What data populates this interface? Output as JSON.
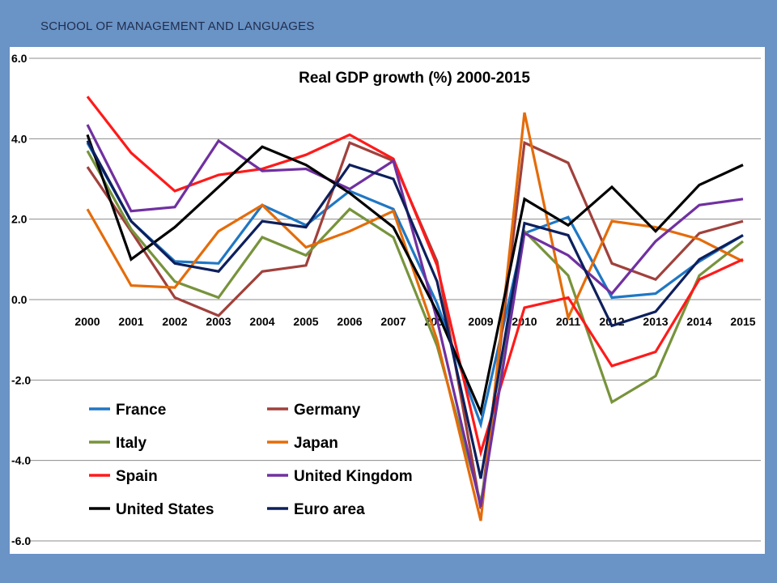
{
  "header": {
    "text": "SCHOOL OF MANAGEMENT AND LANGUAGES"
  },
  "chart_data": {
    "type": "line",
    "title": "Real GDP growth (%) 2000-2015",
    "xlabel": "",
    "ylabel": "",
    "ylim": [
      -6,
      6
    ],
    "yticks": [
      6,
      4,
      2,
      0,
      -2,
      -4,
      -6
    ],
    "ytick_labels": [
      "6.0",
      "4.0",
      "2.0",
      "0.0",
      "-2.0",
      "-4.0",
      "-6.0"
    ],
    "x": [
      "2000",
      "2001",
      "2002",
      "2003",
      "2004",
      "2005",
      "2006",
      "2007",
      "2008",
      "2009",
      "2010",
      "2011",
      "2012",
      "2013",
      "2014",
      "2015"
    ],
    "grid": true,
    "legend_position": "bottom-left",
    "series": [
      {
        "name": "France",
        "color": "#1f77c4",
        "values": [
          3.9,
          1.95,
          0.95,
          0.9,
          2.35,
          1.85,
          2.7,
          2.25,
          -0.1,
          -3.1,
          1.65,
          2.05,
          0.05,
          0.15,
          0.95,
          1.6
        ]
      },
      {
        "name": "Germany",
        "color": "#a0413c",
        "values": [
          3.3,
          1.7,
          0.05,
          -0.4,
          0.7,
          0.85,
          3.9,
          3.45,
          0.95,
          -5.2,
          3.9,
          3.4,
          0.9,
          0.5,
          1.65,
          1.95
        ]
      },
      {
        "name": "Italy",
        "color": "#77933c",
        "values": [
          3.7,
          1.75,
          0.45,
          0.05,
          1.55,
          1.1,
          2.25,
          1.55,
          -1.15,
          -5.05,
          1.7,
          0.6,
          -2.55,
          -1.9,
          0.6,
          1.45
        ]
      },
      {
        "name": "Japan",
        "color": "#e46c0a",
        "values": [
          2.25,
          0.35,
          0.3,
          1.7,
          2.35,
          1.3,
          1.7,
          2.2,
          -1.0,
          -5.5,
          4.65,
          -0.45,
          1.95,
          1.8,
          1.5,
          0.95
        ]
      },
      {
        "name": "Spain",
        "color": "#ff1a1a",
        "values": [
          5.05,
          3.65,
          2.7,
          3.1,
          3.25,
          3.6,
          4.1,
          3.5,
          0.85,
          -3.8,
          -0.2,
          0.05,
          -1.65,
          -1.3,
          0.5,
          1.0
        ]
      },
      {
        "name": "United Kingdom",
        "color": "#7030a0",
        "values": [
          4.35,
          2.2,
          2.3,
          3.95,
          3.2,
          3.25,
          2.75,
          3.45,
          -0.5,
          -5.15,
          1.65,
          1.1,
          0.15,
          1.45,
          2.35,
          2.5
        ]
      },
      {
        "name": "United States",
        "color": "#000000",
        "values": [
          4.1,
          1.0,
          1.8,
          2.8,
          3.8,
          3.35,
          2.65,
          1.8,
          -0.3,
          -2.8,
          2.5,
          1.85,
          2.8,
          1.7,
          2.85,
          3.35
        ]
      },
      {
        "name": "Euro area",
        "color": "#0d1f5c",
        "values": [
          3.95,
          1.95,
          0.9,
          0.7,
          1.95,
          1.8,
          3.35,
          3.0,
          0.45,
          -4.45,
          1.9,
          1.6,
          -0.65,
          -0.3,
          1.0,
          1.6
        ]
      }
    ]
  }
}
